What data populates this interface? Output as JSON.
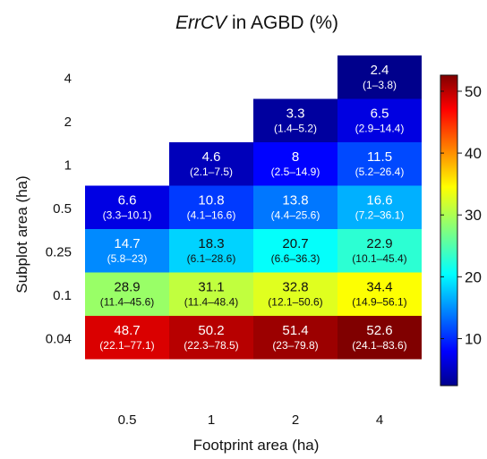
{
  "chart_data": {
    "type": "heatmap",
    "title_italic": "ErrCV",
    "title_rest": " in AGBD (%)",
    "xlabel": "Footprint area (ha)",
    "ylabel": "Subplot area (ha)",
    "x_categories": [
      "0.5",
      "1",
      "2",
      "4"
    ],
    "y_categories": [
      "4",
      "2",
      "1",
      "0.5",
      "0.25",
      "0.1",
      "0.04"
    ],
    "colorbar": {
      "min": 2.4,
      "max": 52.6,
      "ticks": [
        10,
        20,
        30,
        40,
        50
      ]
    },
    "cells": [
      {
        "x": "4",
        "y": "4",
        "value": 2.4,
        "range": "(1–3.8)"
      },
      {
        "x": "2",
        "y": "2",
        "value": 3.3,
        "range": "(1.4–5.2)"
      },
      {
        "x": "4",
        "y": "2",
        "value": 6.5,
        "range": "(2.9–14.4)"
      },
      {
        "x": "1",
        "y": "1",
        "value": 4.6,
        "range": "(2.1–7.5)"
      },
      {
        "x": "2",
        "y": "1",
        "value": 8,
        "range": "(2.5–14.9)"
      },
      {
        "x": "4",
        "y": "1",
        "value": 11.5,
        "range": "(5.2–26.4)"
      },
      {
        "x": "0.5",
        "y": "0.5",
        "value": 6.6,
        "range": "(3.3–10.1)"
      },
      {
        "x": "1",
        "y": "0.5",
        "value": 10.8,
        "range": "(4.1–16.6)"
      },
      {
        "x": "2",
        "y": "0.5",
        "value": 13.8,
        "range": "(4.4–25.6)"
      },
      {
        "x": "4",
        "y": "0.5",
        "value": 16.6,
        "range": "(7.2–36.1)"
      },
      {
        "x": "0.5",
        "y": "0.25",
        "value": 14.7,
        "range": "(5.8–23)"
      },
      {
        "x": "1",
        "y": "0.25",
        "value": 18.3,
        "range": "(6.1–28.6)"
      },
      {
        "x": "2",
        "y": "0.25",
        "value": 20.7,
        "range": "(6.6–36.3)"
      },
      {
        "x": "4",
        "y": "0.25",
        "value": 22.9,
        "range": "(10.1–45.4)"
      },
      {
        "x": "0.5",
        "y": "0.1",
        "value": 28.9,
        "range": "(11.4–45.6)"
      },
      {
        "x": "1",
        "y": "0.1",
        "value": 31.1,
        "range": "(11.4–48.4)"
      },
      {
        "x": "2",
        "y": "0.1",
        "value": 32.8,
        "range": "(12.1–50.6)"
      },
      {
        "x": "4",
        "y": "0.1",
        "value": 34.4,
        "range": "(14.9–56.1)"
      },
      {
        "x": "0.5",
        "y": "0.04",
        "value": 48.7,
        "range": "(22.1–77.1)"
      },
      {
        "x": "1",
        "y": "0.04",
        "value": 50.2,
        "range": "(22.3–78.5)"
      },
      {
        "x": "2",
        "y": "0.04",
        "value": 51.4,
        "range": "(23–79.8)"
      },
      {
        "x": "4",
        "y": "0.04",
        "value": 52.6,
        "range": "(24.1–83.6)"
      }
    ]
  }
}
